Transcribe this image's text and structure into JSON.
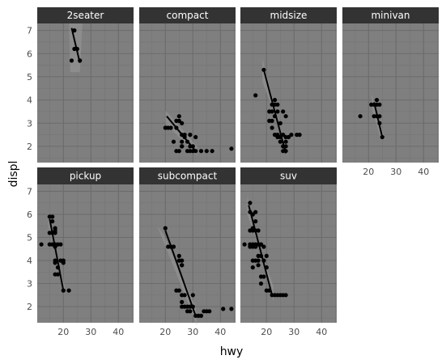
{
  "chart_data": {
    "type": "scatter",
    "xlabel": "hwy",
    "ylabel": "displ",
    "xlim": [
      10.5,
      45.5
    ],
    "ylim": [
      1.3,
      7.3
    ],
    "x_ticks": [
      20,
      30,
      40
    ],
    "y_ticks": [
      2,
      3,
      4,
      5,
      6,
      7
    ],
    "grid": true,
    "colors": {
      "panel_bg": "#7f7f7f",
      "strip_bg": "#333333",
      "strip_text": "#ffffff",
      "grid_major": "#6b6b6b",
      "grid_minor": "#737373",
      "point": "#000000",
      "fit_line": "#000000",
      "ribbon": "#999999"
    },
    "facets": [
      {
        "name": "2seater",
        "points": [
          [
            23,
            5.7
          ],
          [
            24,
            6.2
          ],
          [
            25,
            6.2
          ],
          [
            26,
            5.7
          ],
          [
            24,
            7.0
          ]
        ],
        "fit": [
          [
            23,
            7.1
          ],
          [
            26,
            5.6
          ]
        ],
        "band": [
          [
            22,
            7.5
          ],
          [
            27,
            7.5
          ],
          [
            26,
            5.2
          ],
          [
            22.5,
            5.2
          ]
        ]
      },
      {
        "name": "compact",
        "points": [
          [
            20,
            2.8
          ],
          [
            21,
            2.8
          ],
          [
            22,
            2.8
          ],
          [
            24,
            2.8
          ],
          [
            24,
            3.1
          ],
          [
            25,
            3.1
          ],
          [
            25,
            3.3
          ],
          [
            26,
            2.0
          ],
          [
            26,
            2.2
          ],
          [
            26,
            2.5
          ],
          [
            27,
            2.5
          ],
          [
            27,
            2.4
          ],
          [
            28,
            2.2
          ],
          [
            29,
            2.5
          ],
          [
            29,
            2.0
          ],
          [
            29,
            1.8
          ],
          [
            30,
            1.8
          ],
          [
            30,
            2.0
          ],
          [
            31,
            2.4
          ],
          [
            31,
            1.8
          ],
          [
            25,
            1.8
          ],
          [
            24,
            1.8
          ],
          [
            26,
            2.0
          ],
          [
            33,
            1.8
          ],
          [
            35,
            1.8
          ],
          [
            37,
            1.8
          ],
          [
            44,
            1.9
          ],
          [
            23,
            2.2
          ],
          [
            26,
            3.0
          ],
          [
            28,
            1.8
          ]
        ],
        "fit": [
          [
            20.5,
            3.3
          ],
          [
            31,
            1.8
          ]
        ],
        "band": [
          [
            20,
            3.55
          ],
          [
            31.5,
            2.0
          ],
          [
            31.5,
            1.6
          ],
          [
            20,
            3.0
          ]
        ]
      },
      {
        "name": "midsize",
        "points": [
          [
            16,
            4.2
          ],
          [
            19,
            5.3
          ],
          [
            21,
            3.5
          ],
          [
            21,
            3.1
          ],
          [
            22,
            3.1
          ],
          [
            22,
            3.5
          ],
          [
            22,
            3.8
          ],
          [
            22,
            2.8
          ],
          [
            23,
            2.5
          ],
          [
            23,
            3.3
          ],
          [
            23,
            3.8
          ],
          [
            23,
            4.0
          ],
          [
            24,
            3.8
          ],
          [
            24,
            3.5
          ],
          [
            24,
            2.5
          ],
          [
            24,
            2.4
          ],
          [
            25,
            2.4
          ],
          [
            25,
            3.0
          ],
          [
            25,
            2.2
          ],
          [
            26,
            2.0
          ],
          [
            26,
            2.5
          ],
          [
            26,
            3.5
          ],
          [
            27,
            1.8
          ],
          [
            27,
            2.0
          ],
          [
            27,
            2.4
          ],
          [
            27,
            3.3
          ],
          [
            28,
            2.4
          ],
          [
            29,
            2.5
          ],
          [
            31,
            2.5
          ],
          [
            32,
            2.5
          ],
          [
            26,
            1.8
          ],
          [
            27,
            2.2
          ]
        ],
        "fit": [
          [
            19,
            5.3
          ],
          [
            27,
            1.7
          ]
        ],
        "band": [
          [
            18.5,
            5.8
          ],
          [
            27.5,
            1.6
          ],
          [
            27.5,
            1.9
          ],
          [
            18.5,
            4.8
          ]
        ]
      },
      {
        "name": "minivan",
        "points": [
          [
            17,
            3.3
          ],
          [
            21,
            3.8
          ],
          [
            22,
            3.8
          ],
          [
            22,
            3.3
          ],
          [
            23,
            4.0
          ],
          [
            23,
            3.3
          ],
          [
            24,
            3.3
          ],
          [
            24,
            3.0
          ],
          [
            25,
            2.4
          ],
          [
            24,
            3.8
          ],
          [
            23,
            3.8
          ]
        ],
        "fit": [
          [
            22,
            3.9
          ],
          [
            25,
            2.4
          ]
        ],
        "band": [
          [
            21,
            4.3
          ],
          [
            26,
            2.3
          ],
          [
            24.5,
            2.3
          ],
          [
            21.5,
            3.5
          ]
        ]
      },
      {
        "name": "pickup",
        "points": [
          [
            12,
            4.7
          ],
          [
            15,
            5.9
          ],
          [
            15,
            4.7
          ],
          [
            15,
            5.2
          ],
          [
            16,
            4.7
          ],
          [
            16,
            5.2
          ],
          [
            16,
            5.7
          ],
          [
            17,
            4.7
          ],
          [
            17,
            4.6
          ],
          [
            17,
            5.4
          ],
          [
            17,
            5.2
          ],
          [
            17,
            4.0
          ],
          [
            17,
            3.9
          ],
          [
            17,
            3.4
          ],
          [
            18,
            4.7
          ],
          [
            18,
            3.7
          ],
          [
            18,
            3.4
          ],
          [
            19,
            4.7
          ],
          [
            19,
            4.0
          ],
          [
            20,
            2.7
          ],
          [
            20,
            4.0
          ],
          [
            20,
            3.9
          ],
          [
            22,
            2.7
          ],
          [
            16,
            5.9
          ],
          [
            17,
            5.3
          ]
        ],
        "fit": [
          [
            15,
            5.8
          ],
          [
            20,
            2.7
          ]
        ],
        "band": [
          [
            14.5,
            6.1
          ],
          [
            20.5,
            2.5
          ],
          [
            20.5,
            2.9
          ],
          [
            14.5,
            5.5
          ]
        ]
      },
      {
        "name": "subcompact",
        "points": [
          [
            20,
            5.4
          ],
          [
            21,
            4.6
          ],
          [
            22,
            4.6
          ],
          [
            23,
            4.6
          ],
          [
            25,
            4.0
          ],
          [
            25,
            4.2
          ],
          [
            26,
            3.8
          ],
          [
            26,
            4.0
          ],
          [
            26,
            3.8
          ],
          [
            24,
            2.7
          ],
          [
            25,
            2.7
          ],
          [
            26,
            2.5
          ],
          [
            26,
            2.2
          ],
          [
            27,
            2.0
          ],
          [
            27,
            2.5
          ],
          [
            28,
            2.0
          ],
          [
            28,
            1.8
          ],
          [
            29,
            1.8
          ],
          [
            29,
            2.0
          ],
          [
            30,
            2.0
          ],
          [
            31,
            1.6
          ],
          [
            32,
            1.6
          ],
          [
            33,
            1.6
          ],
          [
            34,
            1.8
          ],
          [
            35,
            1.8
          ],
          [
            36,
            1.8
          ],
          [
            41,
            1.9
          ],
          [
            44,
            1.9
          ],
          [
            26,
            2.0
          ],
          [
            30,
            2.5
          ]
        ],
        "fit": [
          [
            20,
            5.3
          ],
          [
            31,
            1.6
          ]
        ],
        "band": [
          [
            17,
            5.5
          ],
          [
            31.5,
            1.2
          ],
          [
            31,
            2.0
          ],
          [
            22.5,
            4.3
          ],
          [
            19.5,
            5.1
          ]
        ]
      },
      {
        "name": "suv",
        "points": [
          [
            12,
            4.7
          ],
          [
            14,
            6.5
          ],
          [
            14,
            6.1
          ],
          [
            14,
            5.3
          ],
          [
            14,
            4.7
          ],
          [
            14,
            4.6
          ],
          [
            15,
            5.4
          ],
          [
            15,
            5.3
          ],
          [
            15,
            4.7
          ],
          [
            15,
            4.6
          ],
          [
            15,
            4.0
          ],
          [
            15,
            3.7
          ],
          [
            16,
            6.1
          ],
          [
            16,
            5.7
          ],
          [
            16,
            5.3
          ],
          [
            16,
            4.7
          ],
          [
            16,
            4.0
          ],
          [
            17,
            5.3
          ],
          [
            17,
            4.7
          ],
          [
            17,
            4.2
          ],
          [
            17,
            4.0
          ],
          [
            17,
            3.8
          ],
          [
            18,
            4.7
          ],
          [
            18,
            4.2
          ],
          [
            18,
            3.3
          ],
          [
            18,
            3.0
          ],
          [
            19,
            3.3
          ],
          [
            19,
            4.0
          ],
          [
            19,
            4.6
          ],
          [
            20,
            2.7
          ],
          [
            20,
            3.7
          ],
          [
            20,
            4.2
          ],
          [
            21,
            2.7
          ],
          [
            22,
            2.5
          ],
          [
            23,
            2.5
          ],
          [
            24,
            2.5
          ],
          [
            25,
            2.5
          ],
          [
            26,
            2.5
          ],
          [
            27,
            2.5
          ],
          [
            15,
            6.0
          ],
          [
            16,
            4.6
          ],
          [
            18,
            4.7
          ]
        ],
        "fit": [
          [
            13.5,
            6.4
          ],
          [
            22,
            2.5
          ]
        ],
        "band": [
          [
            13,
            6.8
          ],
          [
            22.5,
            2.2
          ],
          [
            22.5,
            2.9
          ],
          [
            13,
            6.0
          ]
        ]
      }
    ]
  }
}
